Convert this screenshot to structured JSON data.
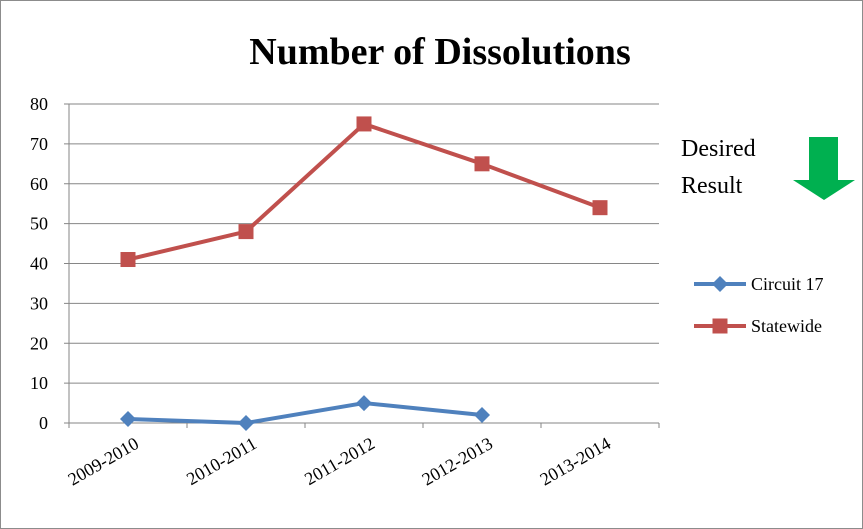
{
  "chart_data": {
    "type": "line",
    "title": "Number of Dissolutions",
    "categories": [
      "2009-2010",
      "2010-2011",
      "2011-2012",
      "2012-2013",
      "2013-2014"
    ],
    "series": [
      {
        "name": "Circuit 17",
        "values": [
          1,
          0,
          5,
          2,
          null
        ],
        "color": "#4f81bd",
        "marker": "diamond"
      },
      {
        "name": "Statewide",
        "values": [
          41,
          48,
          75,
          65,
          54
        ],
        "color": "#c0504d",
        "marker": "square"
      }
    ],
    "ylim": [
      0,
      80
    ],
    "yticks": [
      0,
      10,
      20,
      30,
      40,
      50,
      60,
      70,
      80
    ],
    "grid": true,
    "legend": "right",
    "annotation": {
      "line1": "Desired",
      "line2": "Result",
      "arrow_direction": "down",
      "arrow_color": "#00b050"
    }
  }
}
